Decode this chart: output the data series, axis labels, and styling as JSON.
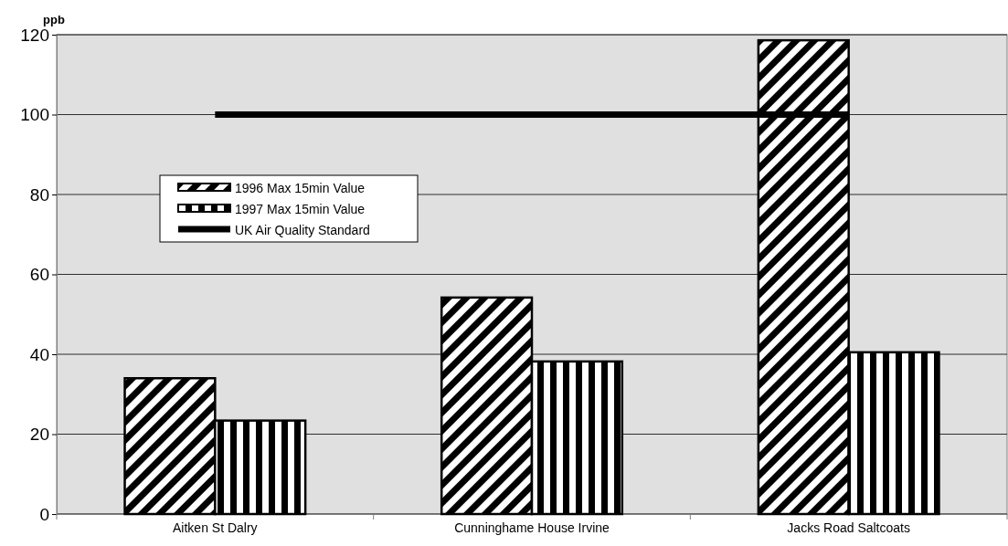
{
  "chart_data": {
    "type": "bar",
    "ylabel": "ppb",
    "categories": [
      "Aitken St Dalry",
      "Cunninghame House Irvine",
      "Jacks Road Saltcoats"
    ],
    "series": [
      {
        "name": "1996 Max 15min Value",
        "color": "#000000",
        "values": [
          34,
          54.2,
          118.6
        ]
      },
      {
        "name": "1997 Max 15min Value",
        "color": "#000000",
        "values": [
          23.4,
          38.2,
          40.5
        ]
      },
      {
        "name": "UK Air Quality Standard",
        "type": "line",
        "color": "#000000",
        "values": [
          100,
          100,
          100
        ],
        "marker": "none"
      }
    ],
    "ylim": [
      0,
      120
    ],
    "yticks": [
      0,
      20,
      40,
      60,
      80,
      100,
      120
    ],
    "grid": "y",
    "legend": "left"
  }
}
